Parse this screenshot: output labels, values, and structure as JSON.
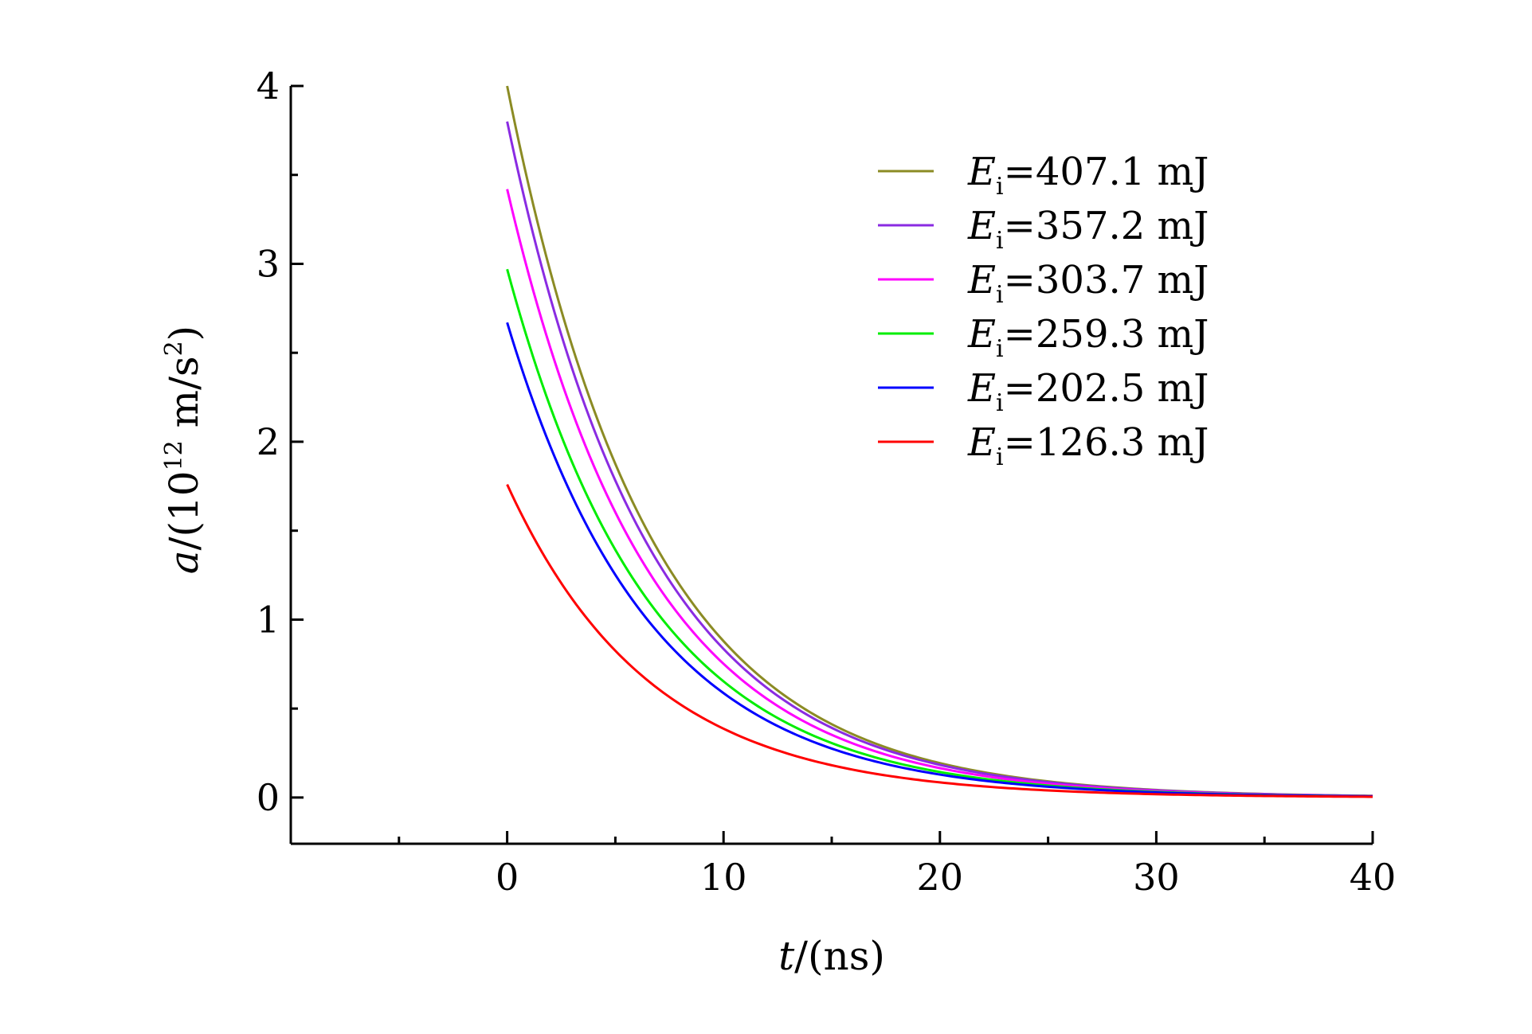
{
  "chart_data": {
    "type": "line",
    "xlabel": {
      "var": "t",
      "rest": "/(ns)"
    },
    "ylabel": {
      "var": "a",
      "rest1": "/(10",
      "sup": "12",
      "rest2": " m/s",
      "sup2": "2",
      "rest3": ")"
    },
    "xlim": [
      -10,
      40
    ],
    "ylim": [
      -0.26,
      4
    ],
    "x_ticks": [
      0,
      10,
      20,
      30,
      40
    ],
    "y_ticks": [
      0,
      1,
      2,
      3,
      4
    ],
    "grid": false,
    "legend_position": "top-right",
    "series": [
      {
        "name": "407.1 mJ",
        "label_var": "E",
        "label_sub": "i",
        "color": "#8b8b24",
        "a0": 4.0,
        "tau": 6.6
      },
      {
        "name": "357.2 mJ",
        "label_var": "E",
        "label_sub": "i",
        "color": "#8a2be2",
        "a0": 3.8,
        "tau": 6.6
      },
      {
        "name": "303.7 mJ",
        "label_var": "E",
        "label_sub": "i",
        "color": "#ff00ff",
        "a0": 3.42,
        "tau": 6.6
      },
      {
        "name": "259.3 mJ",
        "label_var": "E",
        "label_sub": "i",
        "color": "#00ee00",
        "a0": 2.97,
        "tau": 6.6
      },
      {
        "name": "202.5 mJ",
        "label_var": "E",
        "label_sub": "i",
        "color": "#0000ff",
        "a0": 2.67,
        "tau": 6.6
      },
      {
        "name": "126.3 mJ",
        "label_var": "E",
        "label_sub": "i",
        "color": "#ff0000",
        "a0": 1.76,
        "tau": 6.6
      }
    ],
    "x_sample": [
      0,
      2,
      4,
      6,
      8,
      10,
      12,
      14,
      16,
      18,
      20,
      22,
      24,
      26,
      28,
      30,
      32,
      34,
      36,
      38,
      40
    ]
  }
}
